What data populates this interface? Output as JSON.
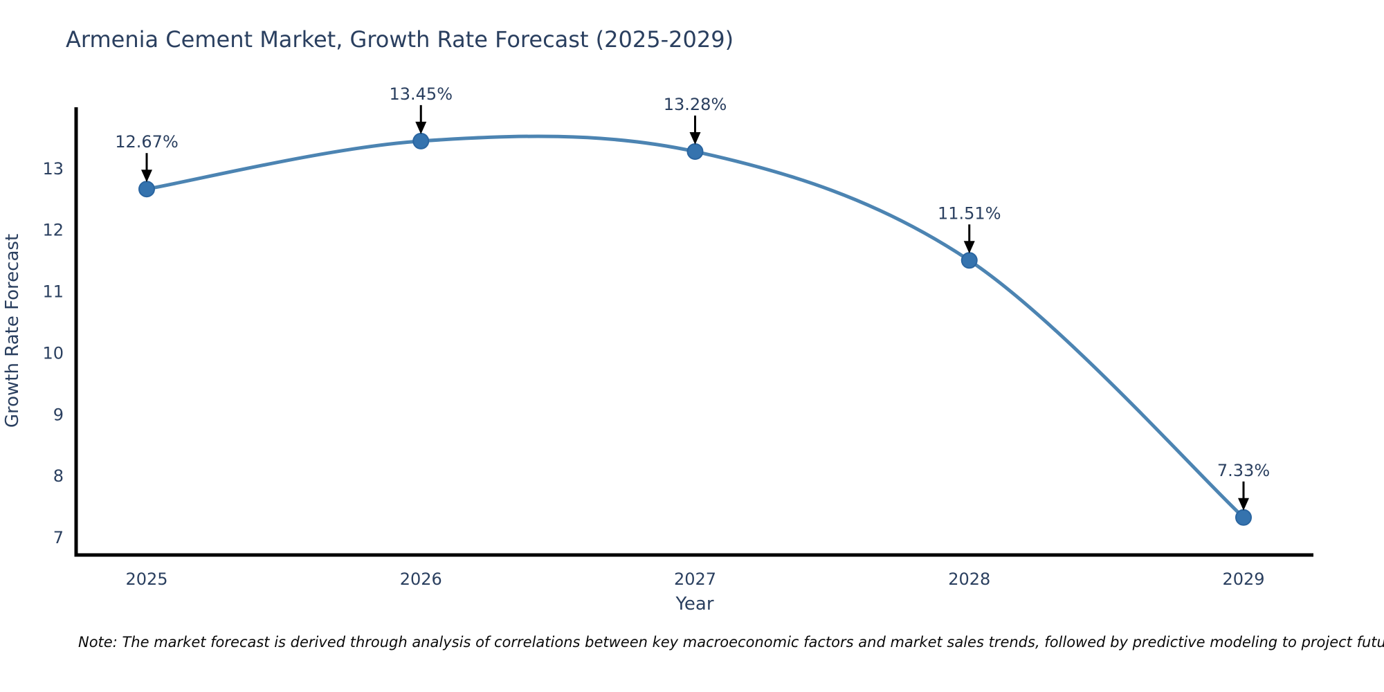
{
  "page": {
    "title": "Armenia Cement Market, Growth Rate Forecast (2025-2029)",
    "note": "Note: The market forecast is derived through analysis of correlations between key macroeconomic factors and market sales trends, followed by predictive modeling to project future sales"
  },
  "colors": {
    "title_text": "#2a3f5f",
    "axis_text": "#2a3f5f",
    "annotation_text": "#2a3f5f",
    "line": "#4c84b2",
    "marker_fill": "#3573ae",
    "marker_edge": "#2a65a0",
    "axis_line": "#000000",
    "arrow": "#000000",
    "background": "#ffffff"
  },
  "chart_data": {
    "type": "line",
    "title": "Armenia Cement Market, Growth Rate Forecast (2025-2029)",
    "xlabel": "Year",
    "ylabel": "Growth Rate Forecast",
    "x": [
      2025,
      2026,
      2027,
      2028,
      2029
    ],
    "series": [
      {
        "name": "Growth Rate Forecast",
        "values": [
          12.67,
          13.45,
          13.28,
          11.51,
          7.33
        ],
        "point_labels": [
          "12.67%",
          "13.45%",
          "13.28%",
          "11.51%",
          "7.33%"
        ]
      }
    ],
    "x_ticks": [
      "2025",
      "2026",
      "2027",
      "2028",
      "2029"
    ],
    "y_ticks": [
      7,
      8,
      9,
      10,
      11,
      12,
      13
    ],
    "ylim": [
      6.72,
      14.0
    ],
    "grid": false,
    "legend_position": "none",
    "line_shape": "spline",
    "markers": true,
    "annotations_with_arrows": true
  }
}
